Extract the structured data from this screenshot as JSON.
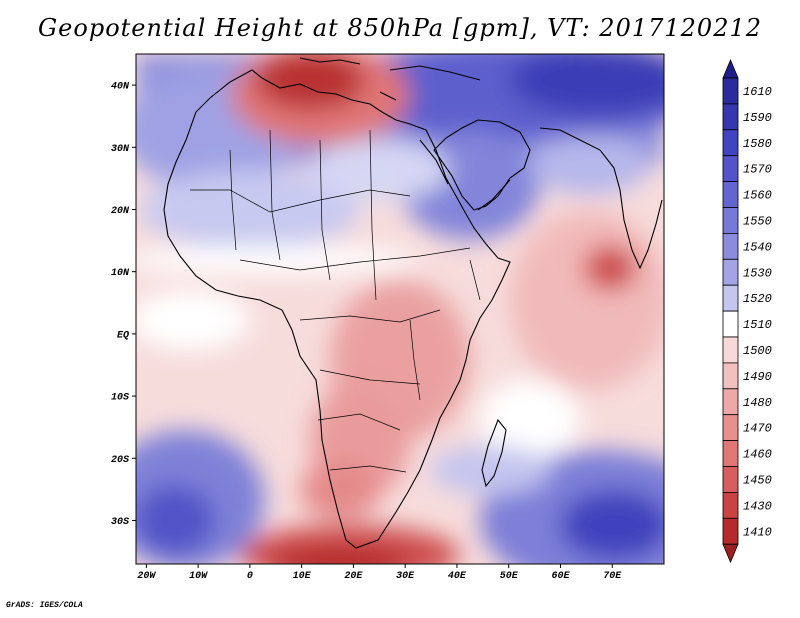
{
  "title": "Geopotential Height at 850hPa [gpm], VT: 2017120212",
  "credit": "GrADS: IGES/COLA",
  "map": {
    "lon_range": [
      -22,
      80
    ],
    "lat_range": [
      -37,
      45
    ],
    "x_ticks": [
      {
        "lon": -20,
        "label": "20W"
      },
      {
        "lon": -10,
        "label": "10W"
      },
      {
        "lon": 0,
        "label": "0"
      },
      {
        "lon": 10,
        "label": "10E"
      },
      {
        "lon": 20,
        "label": "20E"
      },
      {
        "lon": 30,
        "label": "30E"
      },
      {
        "lon": 40,
        "label": "40E"
      },
      {
        "lon": 50,
        "label": "50E"
      },
      {
        "lon": 60,
        "label": "60E"
      },
      {
        "lon": 70,
        "label": "70E"
      }
    ],
    "y_ticks": [
      {
        "lat": 40,
        "label": "40N"
      },
      {
        "lat": 30,
        "label": "30N"
      },
      {
        "lat": 20,
        "label": "20N"
      },
      {
        "lat": 10,
        "label": "10N"
      },
      {
        "lat": 0,
        "label": "EQ"
      },
      {
        "lat": -10,
        "label": "10S"
      },
      {
        "lat": -20,
        "label": "20S"
      },
      {
        "lat": -30,
        "label": "30S"
      }
    ]
  },
  "colorbar": {
    "levels": [
      {
        "label": "1610",
        "color": "#2a2c9c"
      },
      {
        "label": "1590",
        "color": "#3537ae"
      },
      {
        "label": "1580",
        "color": "#4144bf"
      },
      {
        "label": "1570",
        "color": "#5254c8"
      },
      {
        "label": "1560",
        "color": "#6466d0"
      },
      {
        "label": "1550",
        "color": "#7779d7"
      },
      {
        "label": "1540",
        "color": "#8a8cdd"
      },
      {
        "label": "1530",
        "color": "#a3a4e5"
      },
      {
        "label": "1520",
        "color": "#c5c6ef"
      },
      {
        "label": "1510",
        "color": "#ffffff"
      },
      {
        "label": "1500",
        "color": "#f9d8d8"
      },
      {
        "label": "1490",
        "color": "#f3c0c0"
      },
      {
        "label": "1480",
        "color": "#eda8a8"
      },
      {
        "label": "1470",
        "color": "#e69090"
      },
      {
        "label": "1460",
        "color": "#df7777"
      },
      {
        "label": "1450",
        "color": "#d65e5e"
      },
      {
        "label": "1430",
        "color": "#c94343"
      },
      {
        "label": "1410",
        "color": "#b52b2b"
      }
    ],
    "top_arrow_color": "#1f1f8a",
    "bottom_arrow_color": "#9e1f1f"
  }
}
